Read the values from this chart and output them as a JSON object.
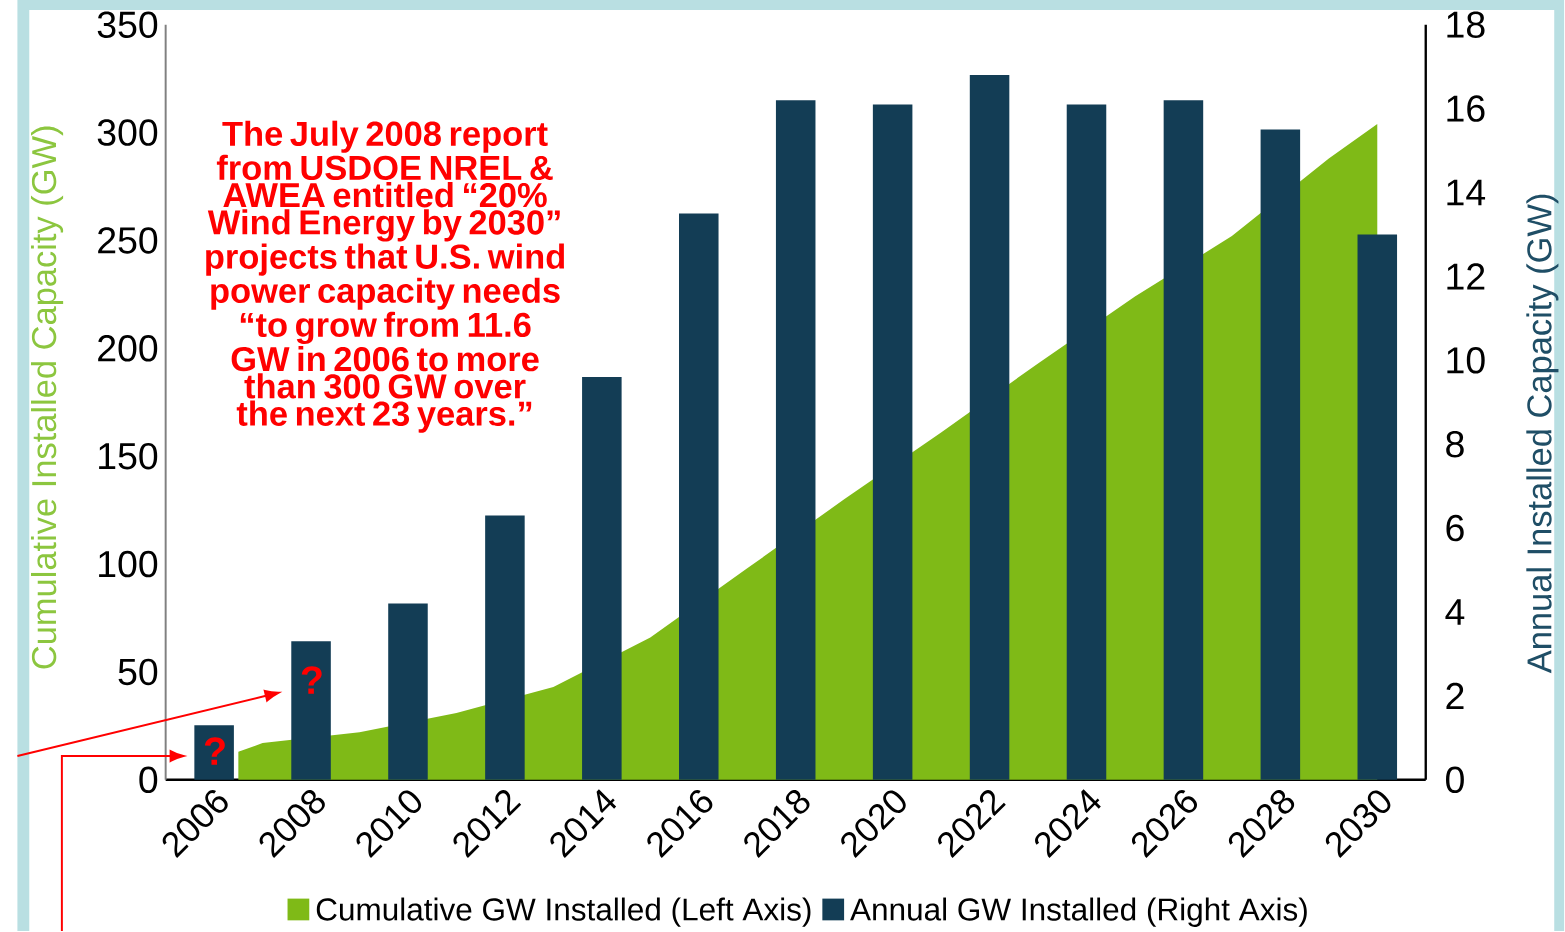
{
  "chart_data": {
    "type": "bar",
    "ylabel": "Cumulative Installed Capacity (GW)",
    "y2label": "Annual Installed Capacity (GW)",
    "x": [
      2006,
      2008,
      2010,
      2012,
      2014,
      2016,
      2018,
      2020,
      2022,
      2024,
      2026,
      2028,
      2030
    ],
    "series": [
      {
        "name": "Cumulative GW Installed (Left Axis)",
        "type": "area",
        "color": "#7fba17",
        "x": [
          2006.5,
          2007,
          2009,
          2011,
          2013,
          2015,
          2017,
          2019,
          2021,
          2023,
          2025,
          2027,
          2029,
          2030
        ],
        "values": [
          13,
          17,
          22,
          31,
          43,
          66,
          98,
          130,
          161,
          193,
          224,
          252,
          288,
          304
        ]
      },
      {
        "name": "Annual GW Installed (Right Axis)",
        "axis": "y2",
        "color": "#133d55",
        "values": [
          1.3,
          3.3,
          4.2,
          6.3,
          9.6,
          13.5,
          16.2,
          16.1,
          16.8,
          16.1,
          16.2,
          15.5,
          13.0
        ]
      }
    ],
    "xlim": [
      2005,
      2031
    ],
    "xticks": [
      2006,
      2008,
      2010,
      2012,
      2014,
      2016,
      2018,
      2020,
      2022,
      2024,
      2026,
      2028,
      2030
    ],
    "ylim": [
      0,
      350
    ],
    "yticks": [
      0,
      50,
      100,
      150,
      200,
      250,
      300,
      350
    ],
    "y2lim": [
      0,
      18
    ],
    "y2ticks": [
      0,
      2,
      4,
      6,
      8,
      10,
      12,
      14,
      16,
      18
    ],
    "annotations": [
      "The July 2008 report from USDOE NREL & AWEA entitled “20% Wind Energy by 2030” projects that U.S. wind power capacity needs “to grow from 11.6 GW in 2006 to more than 300 GW over the next 23 years.”",
      "?",
      "?"
    ],
    "legend": "bottom",
    "grid": false
  }
}
